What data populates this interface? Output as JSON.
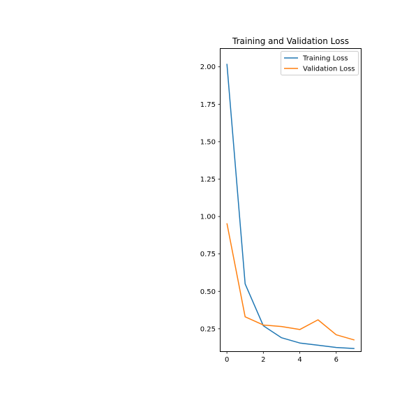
{
  "chart_data": {
    "type": "line",
    "title": "Training and Validation Loss",
    "xlabel": "",
    "ylabel": "",
    "x": [
      0,
      1,
      2,
      3,
      4,
      5,
      6,
      7
    ],
    "xlim": [
      -0.35,
      7.35
    ],
    "ylim": [
      0.1,
      2.12
    ],
    "xticks": [
      0,
      2,
      4,
      6
    ],
    "yticks": [
      0.25,
      0.5,
      0.75,
      1.0,
      1.25,
      1.5,
      1.75,
      2.0
    ],
    "ytick_labels": [
      "0.25",
      "0.50",
      "0.75",
      "1.00",
      "1.25",
      "1.50",
      "1.75",
      "2.00"
    ],
    "xtick_labels": [
      "0",
      "2",
      "4",
      "6"
    ],
    "grid": false,
    "legend_position": "top-right",
    "series": [
      {
        "name": "Training Loss",
        "color": "#1f77b4",
        "values": [
          2.02,
          0.55,
          0.27,
          0.19,
          0.155,
          0.14,
          0.125,
          0.118
        ]
      },
      {
        "name": "Validation Loss",
        "color": "#ff7f0e",
        "values": [
          0.955,
          0.33,
          0.275,
          0.265,
          0.245,
          0.31,
          0.21,
          0.175
        ]
      }
    ]
  }
}
